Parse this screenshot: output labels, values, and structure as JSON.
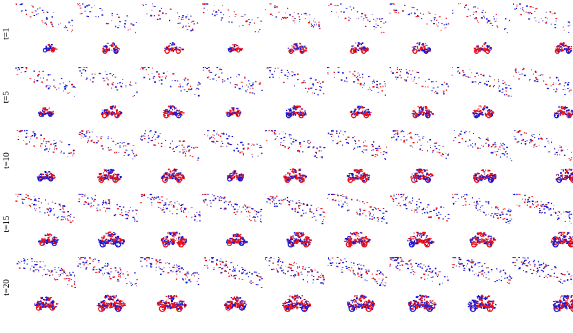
{
  "colors": {
    "positive_events": "#e8141c",
    "negative_events": "#1a1ad6",
    "background": "#ffffff"
  },
  "rows": [
    {
      "label": "t=1",
      "tiles": 9
    },
    {
      "label": "t=5",
      "tiles": 9
    },
    {
      "label": "t=10",
      "tiles": 9
    },
    {
      "label": "t=15",
      "tiles": 9
    },
    {
      "label": "t=20",
      "tiles": 9
    }
  ]
}
